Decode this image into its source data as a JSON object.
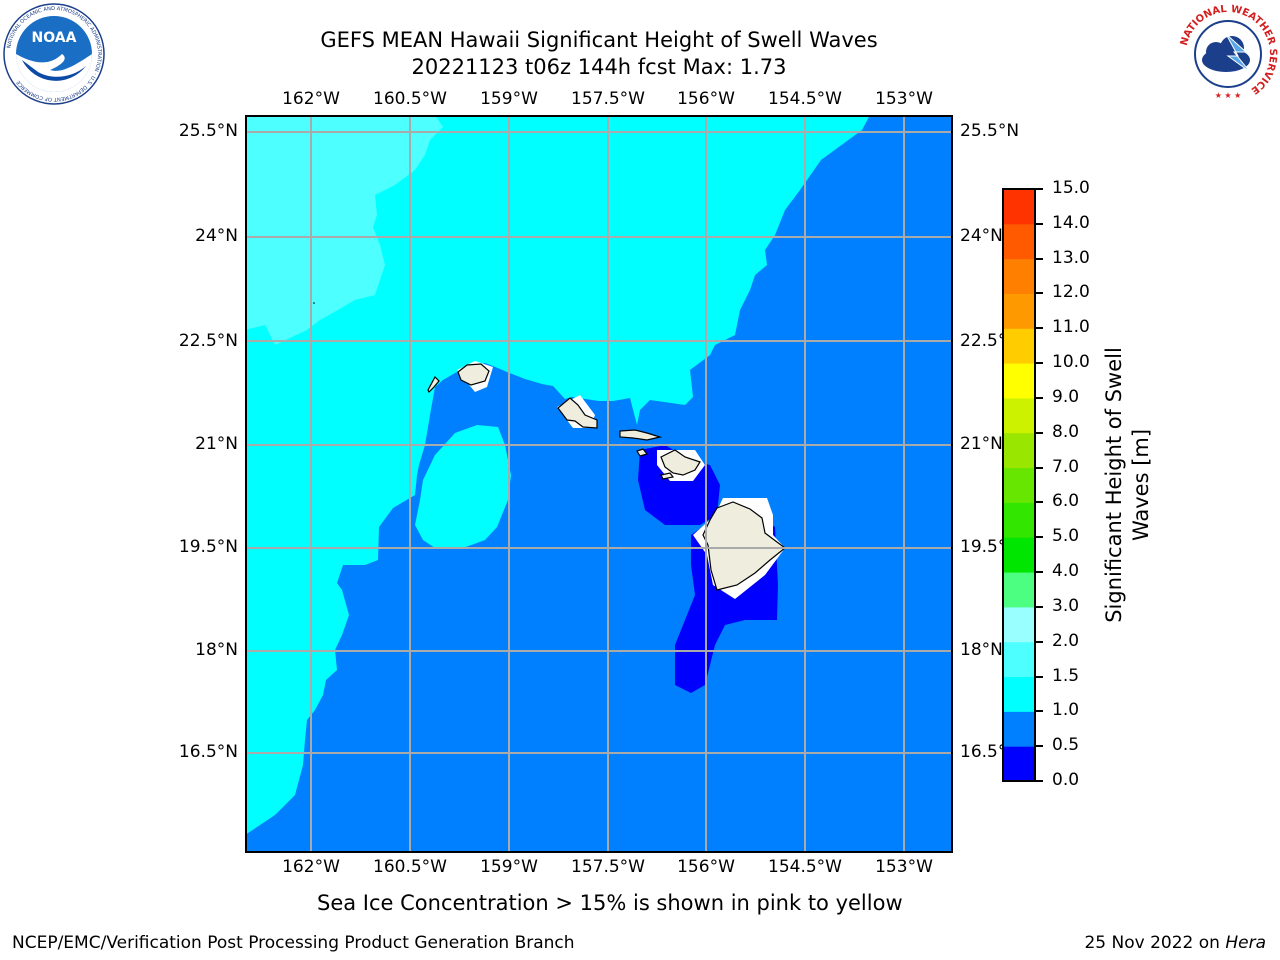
{
  "title": {
    "line1": "GEFS MEAN Hawaii Significant Height of Swell Waves",
    "line2": "20221123 t06z 144h fcst   Max: 1.73"
  },
  "map": {
    "lon_ticks": [
      "162°W",
      "160.5°W",
      "159°W",
      "157.5°W",
      "156°W",
      "154.5°W",
      "153°W"
    ],
    "lat_ticks": [
      "25.5°N",
      "24°N",
      "22.5°N",
      "21°N",
      "19.5°N",
      "18°N",
      "16.5°N"
    ],
    "lon_range": [
      -163,
      -152.25
    ],
    "lat_range": [
      15.25,
      25.75
    ],
    "grid": true,
    "colors": {
      "band_0_0.5": "#0000ff",
      "band_0.5_1.0": "#0080ff",
      "band_1.0_1.5": "#00ffff",
      "band_1.5_2.0": "#4dffff",
      "land": "#efedde",
      "grid": "#aaaaaa"
    }
  },
  "colorbar": {
    "label": "Significant Height of Swell Waves [m]",
    "label_line1": "Significant Height of Swell",
    "label_line2": "Waves [m]",
    "ticks": [
      "0.0",
      "0.5",
      "1.0",
      "1.5",
      "2.0",
      "3.0",
      "4.0",
      "5.0",
      "6.0",
      "7.0",
      "8.0",
      "9.0",
      "10.0",
      "11.0",
      "12.0",
      "13.0",
      "14.0",
      "15.0"
    ],
    "colors": [
      "#0000ff",
      "#0080ff",
      "#00ffff",
      "#4dffff",
      "#99ffff",
      "#4dff80",
      "#00e600",
      "#33e600",
      "#66e600",
      "#99e600",
      "#ccf200",
      "#ffff00",
      "#ffcc00",
      "#ff9900",
      "#ff8000",
      "#ff5a00",
      "#ff3300"
    ]
  },
  "note": "Sea Ice Concentration > 15% is shown in pink to yellow",
  "footer": {
    "left": "NCEP/EMC/Verification Post Processing Product Generation Branch",
    "date": "25 Nov 2022 on ",
    "host": "Hera"
  },
  "logos": {
    "left_text": "NOAA",
    "left_ring": "NATIONAL OCEANIC AND ATMOSPHERIC ADMINISTRATION · U.S. DEPARTMENT OF COMMERCE",
    "right_ring": "NATIONAL WEATHER SERVICE"
  }
}
